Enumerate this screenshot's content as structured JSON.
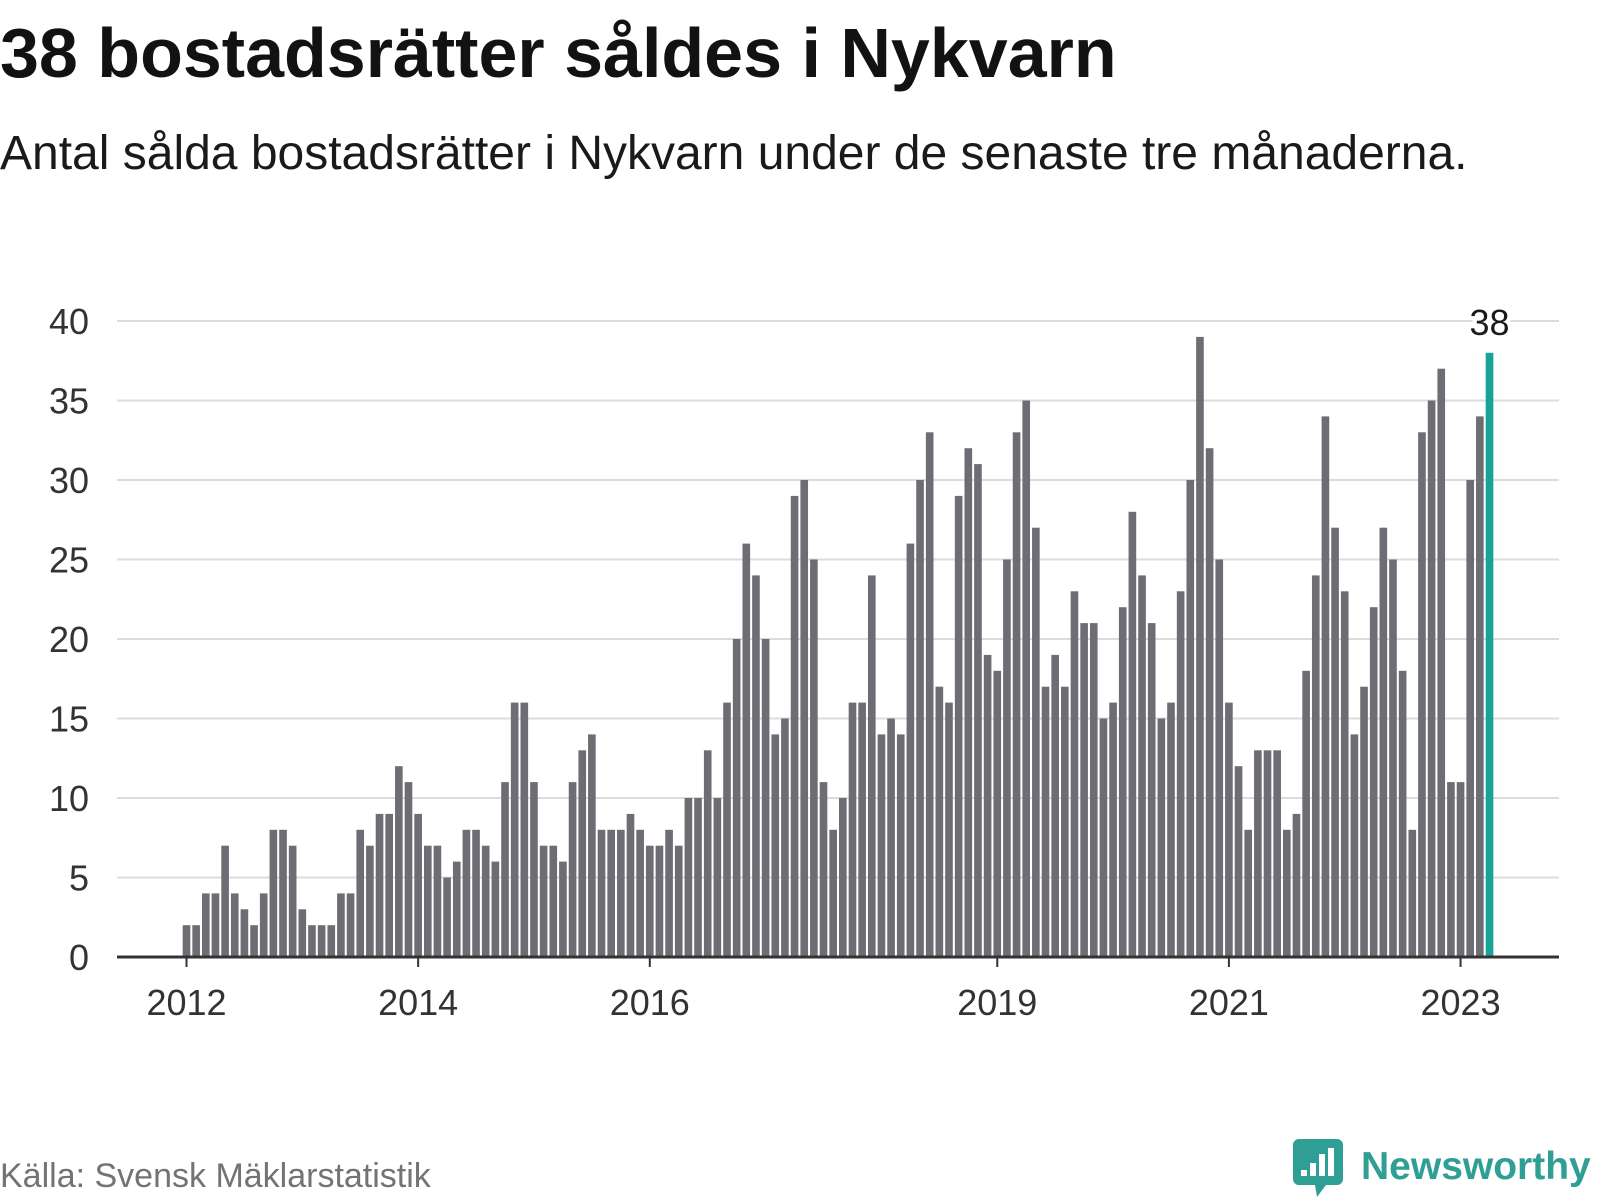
{
  "chart_data": {
    "type": "bar",
    "title": "38 bostadsrätter såldes i Nykvarn",
    "subtitle": "Antal sålda bostadsrätter i Nykvarn under de senaste tre månaderna.",
    "x_start_year": 2012,
    "x_start_month": 1,
    "values": [
      2,
      2,
      4,
      4,
      7,
      4,
      3,
      2,
      4,
      8,
      8,
      7,
      3,
      2,
      2,
      2,
      4,
      4,
      8,
      7,
      9,
      9,
      12,
      11,
      9,
      7,
      7,
      5,
      6,
      8,
      8,
      7,
      6,
      11,
      16,
      16,
      11,
      7,
      7,
      6,
      11,
      13,
      14,
      8,
      8,
      8,
      9,
      8,
      7,
      7,
      8,
      7,
      10,
      10,
      13,
      10,
      16,
      20,
      26,
      24,
      20,
      14,
      15,
      29,
      30,
      25,
      11,
      8,
      10,
      16,
      16,
      24,
      14,
      15,
      14,
      26,
      30,
      33,
      17,
      16,
      29,
      32,
      31,
      19,
      18,
      25,
      33,
      35,
      27,
      17,
      19,
      17,
      23,
      21,
      21,
      15,
      16,
      22,
      28,
      24,
      21,
      15,
      16,
      23,
      30,
      39,
      32,
      25,
      16,
      12,
      8,
      13,
      13,
      13,
      8,
      9,
      18,
      24,
      34,
      27,
      23,
      14,
      17,
      22,
      27,
      25,
      18,
      8,
      33,
      35,
      37,
      11,
      11,
      30,
      34,
      38
    ],
    "xlim": [
      2011.4,
      2023.85
    ],
    "ylim": [
      0,
      40
    ],
    "xticks": [
      2012,
      2014,
      2016,
      2019,
      2021,
      2023
    ],
    "yticks": [
      0,
      5,
      10,
      15,
      20,
      25,
      30,
      35,
      40
    ],
    "grid": true,
    "highlight": {
      "index": 135,
      "label": "38"
    },
    "colors": {
      "bar": "#6e6d73",
      "highlight": "#17a398",
      "grid": "#dcdcdc",
      "axis": "#333333"
    }
  },
  "source": "Källa: Svensk Mäklarstatistik",
  "logo": {
    "text": "Newsworthy",
    "icon": "newsworthy-logo-icon",
    "color": "#2f9e95"
  }
}
